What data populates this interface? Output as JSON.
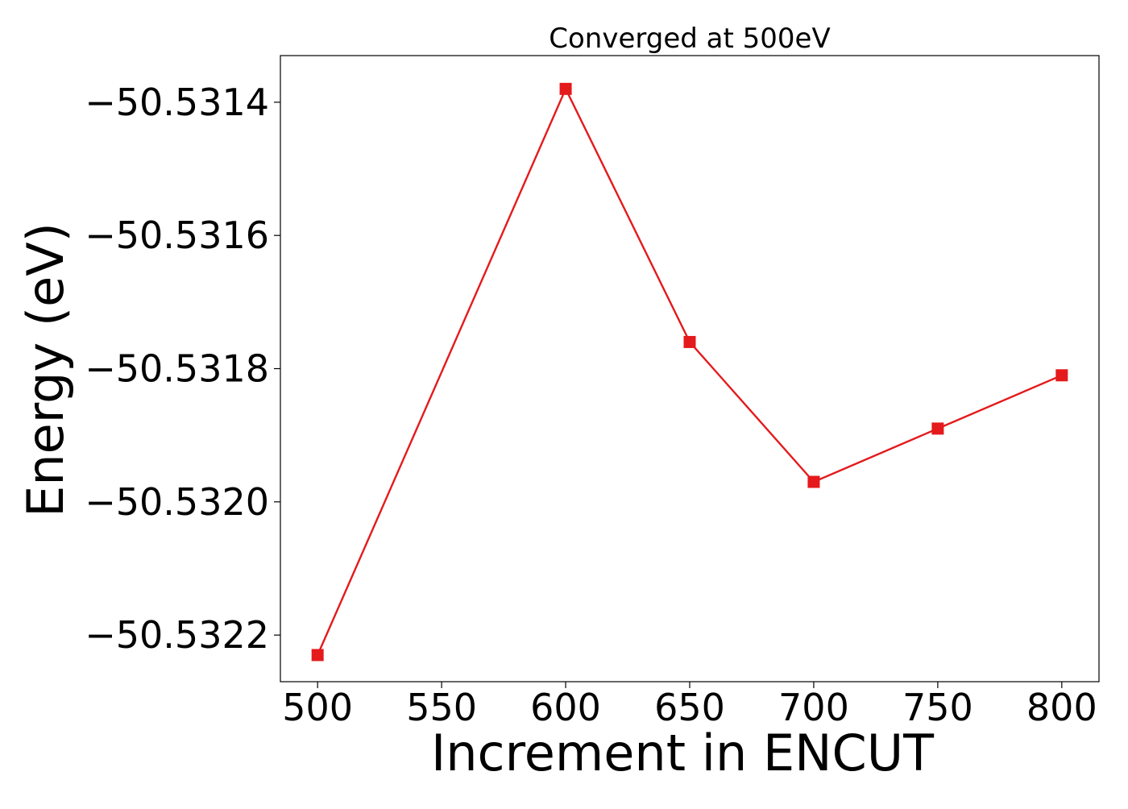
{
  "chart_data": {
    "type": "line",
    "title": "Converged at 500eV",
    "xlabel": "Increment in ENCUT",
    "ylabel": "Energy (eV)",
    "x": [
      500,
      600,
      650,
      700,
      750,
      800
    ],
    "series": [
      {
        "values": [
          -50.53223,
          -50.53138,
          -50.53176,
          -50.53197,
          -50.53189,
          -50.53181
        ],
        "color": "#e41a1c",
        "marker": "square"
      }
    ],
    "xticks": [
      500,
      550,
      600,
      650,
      700,
      750,
      800
    ],
    "xtick_labels": [
      "500",
      "550",
      "600",
      "650",
      "700",
      "750",
      "800"
    ],
    "yticks": [
      -50.5314,
      -50.5316,
      -50.5318,
      -50.532,
      -50.5322
    ],
    "ytick_labels": [
      "−50.5314",
      "−50.5316",
      "−50.5318",
      "−50.5320",
      "−50.5322"
    ],
    "xlim": [
      485,
      815
    ],
    "ylim": [
      -50.53227,
      -50.53133
    ],
    "grid": false,
    "legend": "none"
  }
}
